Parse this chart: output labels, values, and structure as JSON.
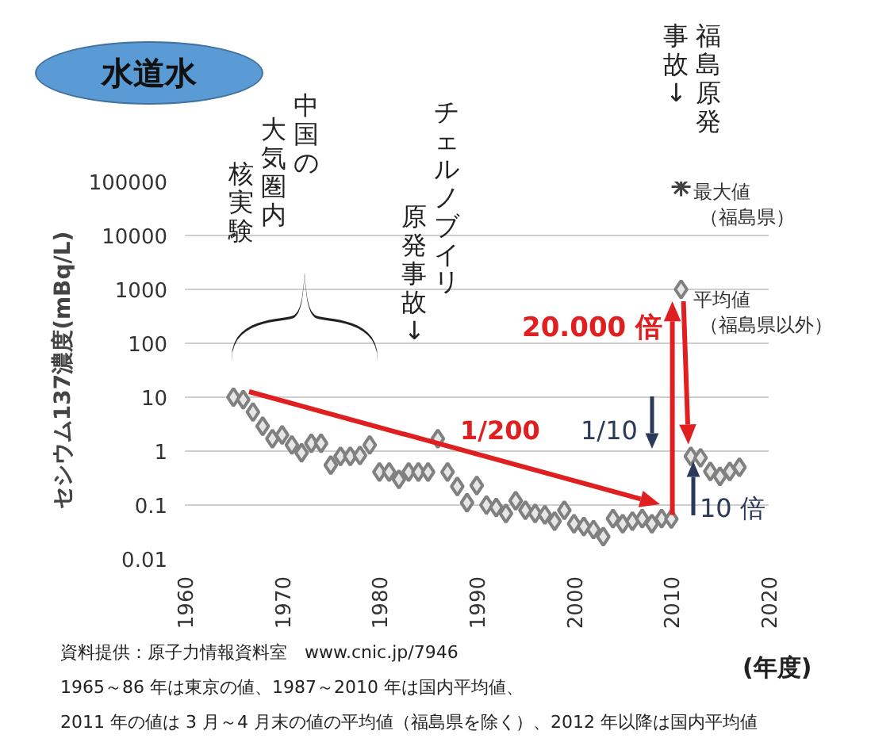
{
  "chart_data": {
    "type": "scatter",
    "title": "水道水",
    "xlabel": "(年度)",
    "ylabel": "セシウム137濃度(mBq/L)",
    "log": "y",
    "grid": "y",
    "xlim": [
      1960,
      2020
    ],
    "xticks": [
      1960,
      1970,
      1980,
      1990,
      2000,
      2010,
      2020
    ],
    "ylim": [
      0.01,
      100000
    ],
    "yticks": [
      0.01,
      0.1,
      1,
      10,
      100,
      1000,
      10000,
      100000
    ],
    "series": [
      {
        "marker": "diamond",
        "color": "#808080",
        "x": [
          1965,
          1966,
          1967,
          1968,
          1969,
          1970,
          1971,
          1972,
          1973,
          1974,
          1975,
          1976,
          1977,
          1978,
          1979,
          1980,
          1981,
          1982,
          1983,
          1984,
          1985,
          1986,
          1987,
          1988,
          1989,
          1990,
          1991,
          1992,
          1993,
          1994,
          1995,
          1996,
          1997,
          1998,
          1999,
          2000,
          2001,
          2002,
          2003,
          2004,
          2005,
          2006,
          2007,
          2008,
          2009,
          2010,
          2011,
          2012,
          2013,
          2014,
          2015,
          2016,
          2017
        ],
        "values": [
          10,
          9,
          5.3,
          2.9,
          1.7,
          2.0,
          1.3,
          0.93,
          1.4,
          1.4,
          0.55,
          0.8,
          0.8,
          0.83,
          1.3,
          0.41,
          0.41,
          0.3,
          0.41,
          0.41,
          0.41,
          1.7,
          0.41,
          0.22,
          0.11,
          0.23,
          0.1,
          0.09,
          0.07,
          0.12,
          0.08,
          0.07,
          0.066,
          0.05,
          0.08,
          0.045,
          0.04,
          0.035,
          0.026,
          0.056,
          0.045,
          0.05,
          0.056,
          0.045,
          0.056,
          0.055,
          1000,
          0.8,
          0.75,
          0.42,
          0.34,
          0.42,
          0.5
        ]
      },
      {
        "name": "最大値（福島県）",
        "marker": "cross",
        "color": "#404040",
        "x": [
          2011
        ],
        "values": [
          80000
        ]
      }
    ],
    "annotations": [
      "中国の大気圏内核実験",
      "チェルノブイリ原発事故↓",
      "福島原発事故↓",
      {
        "text": "平均値（福島県以外）",
        "x": 2011,
        "y": 1000
      },
      {
        "text": "20.000 倍",
        "x": 2011,
        "y": 1000
      },
      "1/200",
      "1/10",
      "10 倍",
      "資料提供：原子力情報資料室　www.cnic.jp/7946",
      "1965～86 年は東京の値、1987～2010 年は国内平均値、",
      "2011 年の値は 3 月～4 月末の値の平均値（福島県を除く）、2012 年以降は国内平均値"
    ]
  }
}
